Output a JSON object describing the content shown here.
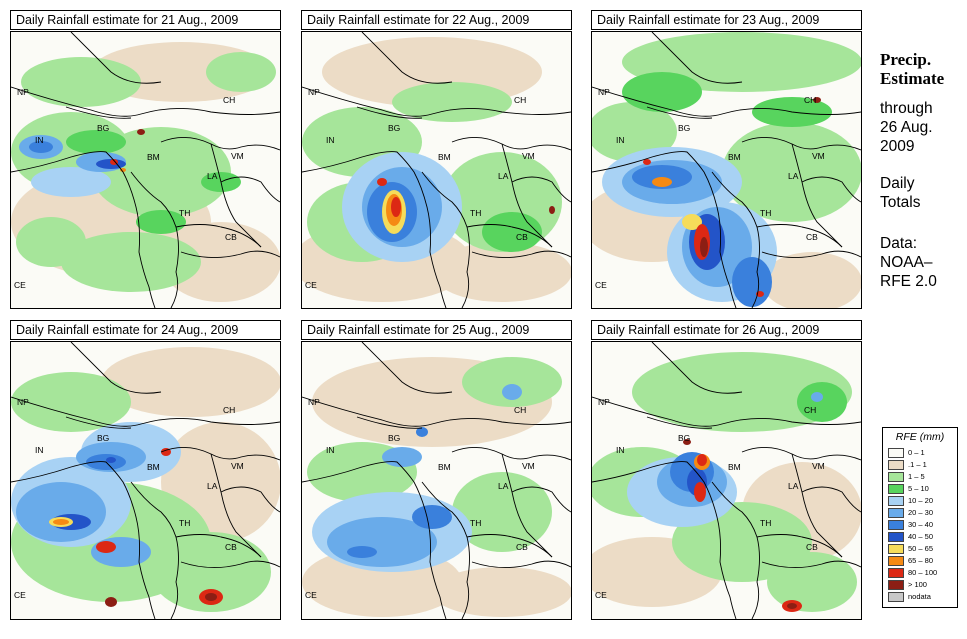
{
  "panels": [
    {
      "title": "Daily Rainfall estimate for  21 Aug., 2009"
    },
    {
      "title": "Daily Rainfall estimate for  22 Aug., 2009"
    },
    {
      "title": "Daily Rainfall estimate for  23 Aug., 2009"
    },
    {
      "title": "Daily Rainfall estimate for  24 Aug., 2009"
    },
    {
      "title": "Daily Rainfall estimate for  25 Aug., 2009"
    },
    {
      "title": "Daily Rainfall estimate for  26 Aug., 2009"
    }
  ],
  "country_labels": [
    "NP",
    "CH",
    "IN",
    "BG",
    "BM",
    "VM",
    "LA",
    "TH",
    "CB",
    "CE"
  ],
  "side": {
    "title_line1": "Precip.",
    "title_line2": "Estimate",
    "through": "through",
    "date_line1": "26 Aug.",
    "date_line2": "2009",
    "daily1": "Daily",
    "daily2": "Totals",
    "data1": "Data:",
    "data2": "NOAA–",
    "data3": "RFE 2.0"
  },
  "legend": {
    "title": "RFE (mm)",
    "items": [
      {
        "label": "0 – 1",
        "color": "#fbfbf6"
      },
      {
        "label": ".1 – 1",
        "color": "#ecdcc6"
      },
      {
        "label": "1 – 5",
        "color": "#a6e59a"
      },
      {
        "label": "5 – 10",
        "color": "#58d45e"
      },
      {
        "label": "10 – 20",
        "color": "#a8d2f4"
      },
      {
        "label": "20 – 30",
        "color": "#69abea"
      },
      {
        "label": "30 – 40",
        "color": "#3a80dc"
      },
      {
        "label": "40 – 50",
        "color": "#2354c8"
      },
      {
        "label": "50 – 65",
        "color": "#f6dc5a"
      },
      {
        "label": "65 – 80",
        "color": "#f58a14"
      },
      {
        "label": "80 – 100",
        "color": "#dc2814"
      },
      {
        "label": "> 100",
        "color": "#8c1e14"
      },
      {
        "label": "nodata",
        "color": "#c8c8c8"
      }
    ]
  }
}
